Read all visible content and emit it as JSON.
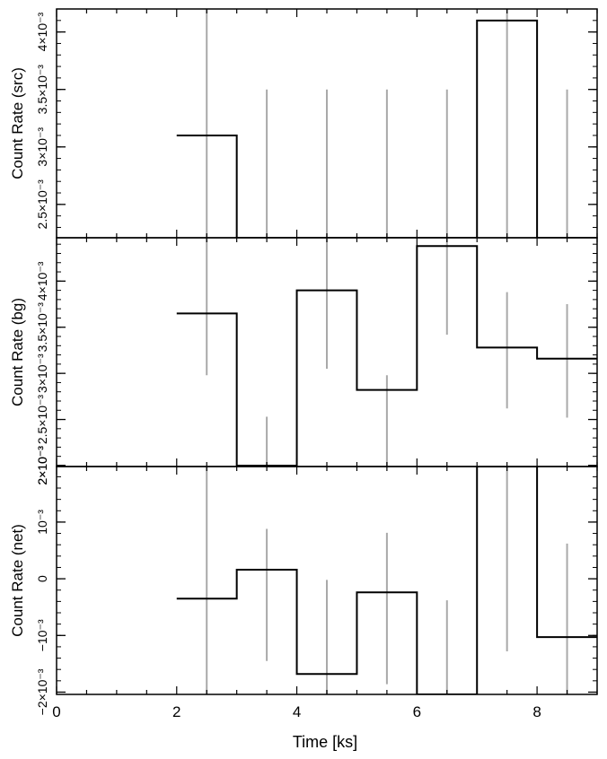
{
  "figure": {
    "xlabel": "Time [ks]"
  },
  "chart_data": [
    {
      "type": "line",
      "panel": "src",
      "ylabel": "Count Rate (src)",
      "xlim": [
        0,
        9
      ],
      "ylim": [
        0.00221,
        0.0042
      ],
      "y_tick_labels": [
        "2.5×10⁻³",
        "3×10⁻³",
        "3.5×10⁻³",
        "4×10⁻³"
      ],
      "y_tick_values": [
        0.0025,
        0.003,
        0.0035,
        0.004
      ],
      "step": {
        "edges": [
          2,
          3,
          4,
          5,
          6,
          7,
          8,
          9
        ],
        "values": [
          0.0031,
          0.00216,
          0.00216,
          0.00216,
          0.00216,
          0.0041,
          0.00216
        ]
      },
      "error_bars": [
        {
          "x": 2.5,
          "lo": 0.0021,
          "hi": 0.0043
        },
        {
          "x": 3.5,
          "lo": 0.0021,
          "hi": 0.0035
        },
        {
          "x": 4.5,
          "lo": 0.0021,
          "hi": 0.0035
        },
        {
          "x": 5.5,
          "lo": 0.0021,
          "hi": 0.0035
        },
        {
          "x": 6.5,
          "lo": 0.0021,
          "hi": 0.0035
        },
        {
          "x": 7.5,
          "lo": 0.0022,
          "hi": 0.0043
        },
        {
          "x": 8.5,
          "lo": 0.0021,
          "hi": 0.0035
        }
      ],
      "grid": false
    },
    {
      "type": "line",
      "panel": "bg",
      "ylabel": "Count Rate (bg)",
      "xlim": [
        0,
        9
      ],
      "ylim": [
        0.00199,
        0.00447
      ],
      "y_tick_labels": [
        "2×10⁻³",
        "2.5×10⁻³",
        "3×10⁻³",
        "3.5×10⁻³",
        "4×10⁻³"
      ],
      "y_tick_values": [
        0.002,
        0.0025,
        0.003,
        0.0035,
        0.004
      ],
      "step": {
        "edges": [
          2,
          3,
          4,
          5,
          6,
          7,
          8,
          9
        ],
        "values": [
          0.00365,
          0.002,
          0.0039,
          0.00282,
          0.00438,
          0.00328,
          0.00316
        ]
      },
      "error_bars": [
        {
          "x": 2.5,
          "lo": 0.00298,
          "hi": 0.00448
        },
        {
          "x": 3.5,
          "lo": 0.00199,
          "hi": 0.00253
        },
        {
          "x": 4.5,
          "lo": 0.00305,
          "hi": 0.00448
        },
        {
          "x": 5.5,
          "lo": 0.00199,
          "hi": 0.00298
        },
        {
          "x": 6.5,
          "lo": 0.00342,
          "hi": 0.00448
        },
        {
          "x": 7.5,
          "lo": 0.00262,
          "hi": 0.00388
        },
        {
          "x": 8.5,
          "lo": 0.00252,
          "hi": 0.00375
        }
      ],
      "grid": false
    },
    {
      "type": "line",
      "panel": "net",
      "ylabel": "Count Rate (net)",
      "xlabel": "Time [ks]",
      "xlim": [
        0,
        9
      ],
      "ylim": [
        -0.00204,
        0.00198
      ],
      "x_tick_labels": [
        "0",
        "2",
        "4",
        "6",
        "8"
      ],
      "x_tick_values": [
        0,
        2,
        4,
        6,
        8
      ],
      "y_tick_labels": [
        "−2×10⁻³",
        "−10⁻³",
        "0",
        "10⁻³",
        "2×10⁻³"
      ],
      "y_tick_values": [
        -0.002,
        -0.001,
        0,
        0.001,
        0.002
      ],
      "step": {
        "edges": [
          2,
          3,
          4,
          5,
          6,
          7,
          8,
          9
        ],
        "values": [
          -0.00035,
          0.00016,
          -0.00168,
          -0.00024,
          -0.0022,
          0.002,
          -0.00103
        ]
      },
      "error_bars": [
        {
          "x": 2.5,
          "lo": -0.0021,
          "hi": 0.0021
        },
        {
          "x": 3.5,
          "lo": -0.00145,
          "hi": 0.00088
        },
        {
          "x": 4.5,
          "lo": -0.0021,
          "hi": -2e-05
        },
        {
          "x": 5.5,
          "lo": -0.00186,
          "hi": 0.00081
        },
        {
          "x": 6.5,
          "lo": -0.0021,
          "hi": -0.00038
        },
        {
          "x": 7.5,
          "lo": -0.00128,
          "hi": 0.0021
        },
        {
          "x": 8.5,
          "lo": -0.0021,
          "hi": 0.00062
        }
      ],
      "grid": false
    }
  ],
  "style": {
    "step_color": "#000000",
    "error_color": "#a9a9a9",
    "frame_color": "#000000"
  }
}
